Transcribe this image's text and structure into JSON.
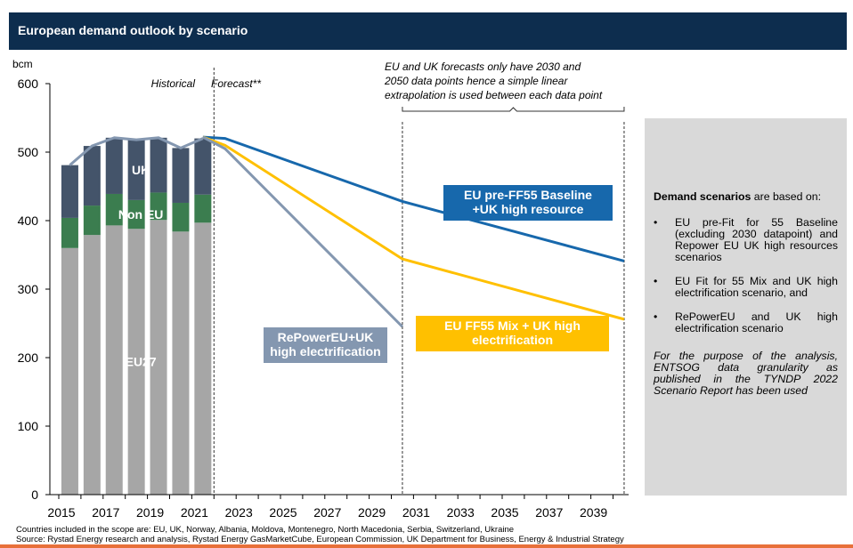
{
  "header": {
    "title": "European demand outlook by scenario"
  },
  "chart_data": {
    "type": "bar+line",
    "title": "European demand outlook by scenario",
    "ylabel": "bcm",
    "ylim": [
      0,
      600
    ],
    "yticks": [
      0,
      100,
      200,
      300,
      400,
      500,
      600
    ],
    "xtick_labels": [
      "2015",
      "2017",
      "2019",
      "2021",
      "2023",
      "2025",
      "2027",
      "2029",
      "2031",
      "2033",
      "2035",
      "2037",
      "2039"
    ],
    "historical_label": "Historical",
    "forecast_label": "Forecast**",
    "bars": {
      "years": [
        2015,
        2016,
        2017,
        2018,
        2019,
        2020,
        2021
      ],
      "stacks": [
        {
          "name": "EU27",
          "label": "EU27",
          "color": "#a6a6a6",
          "values": [
            360,
            379,
            393,
            388,
            401,
            384,
            397
          ]
        },
        {
          "name": "Non EU",
          "label": "Non EU",
          "color": "#3b7d4f",
          "values": [
            44,
            43,
            46,
            42,
            40,
            42,
            41
          ]
        },
        {
          "name": "UK",
          "label": "UK",
          "color": "#44546a",
          "values": [
            77,
            87,
            82,
            88,
            80,
            80,
            82
          ]
        }
      ],
      "total_line_color": "#8497b0"
    },
    "series": [
      {
        "name": "EU pre-FF55 Baseline +UK high resource",
        "label_lines": [
          "EU pre-FF55 Baseline",
          "+UK high resource"
        ],
        "color": "#1768ac",
        "points": [
          [
            2021,
            522
          ],
          [
            2022,
            520
          ],
          [
            2030,
            428
          ],
          [
            2040,
            341
          ]
        ]
      },
      {
        "name": "EU FF55 Mix + UK high electrification",
        "label_lines": [
          "EU FF55 Mix + UK high",
          "electrification"
        ],
        "color": "#ffc000",
        "points": [
          [
            2021,
            522
          ],
          [
            2022,
            510
          ],
          [
            2030,
            344
          ],
          [
            2040,
            256
          ]
        ]
      },
      {
        "name": "RePowerEU+UK high electrification",
        "label_lines": [
          "RePowerEU+UK",
          "high electrification"
        ],
        "color": "#8497b0",
        "points": [
          [
            2021,
            522
          ],
          [
            2022,
            505
          ],
          [
            2030,
            245
          ]
        ]
      }
    ],
    "annotation_lines": [
      "EU and UK forecasts only have 2030 and",
      "2050 data points hence a simple linear",
      "extrapolation is used between each data point"
    ]
  },
  "side_panel": {
    "heading_bold": "Demand scenarios",
    "heading_rest": " are based on:",
    "bullets": [
      "EU pre-Fit for 55 Baseline (excluding 2030 datapoint) and Repower EU UK high resources scenarios",
      "EU Fit for 55 Mix and UK high electrification scenario, and",
      "RePowerEU and UK high electrification scenario"
    ],
    "bullet_symbol": "•",
    "note": "For the purpose of the analysis, ENTSOG data granularity as published in the TYNDP 2022 Scenario Report has been used"
  },
  "footer": {
    "countries": "Countries included in the scope are: EU, UK, Norway, Albania, Moldova, Montenegro, North Macedonia, Serbia, Switzerland, Ukraine",
    "source": "Source: Rystad Energy research and analysis, Rystad Energy GasMarketCube, European Commission, UK Department for Business, Energy & Industrial Strategy"
  }
}
